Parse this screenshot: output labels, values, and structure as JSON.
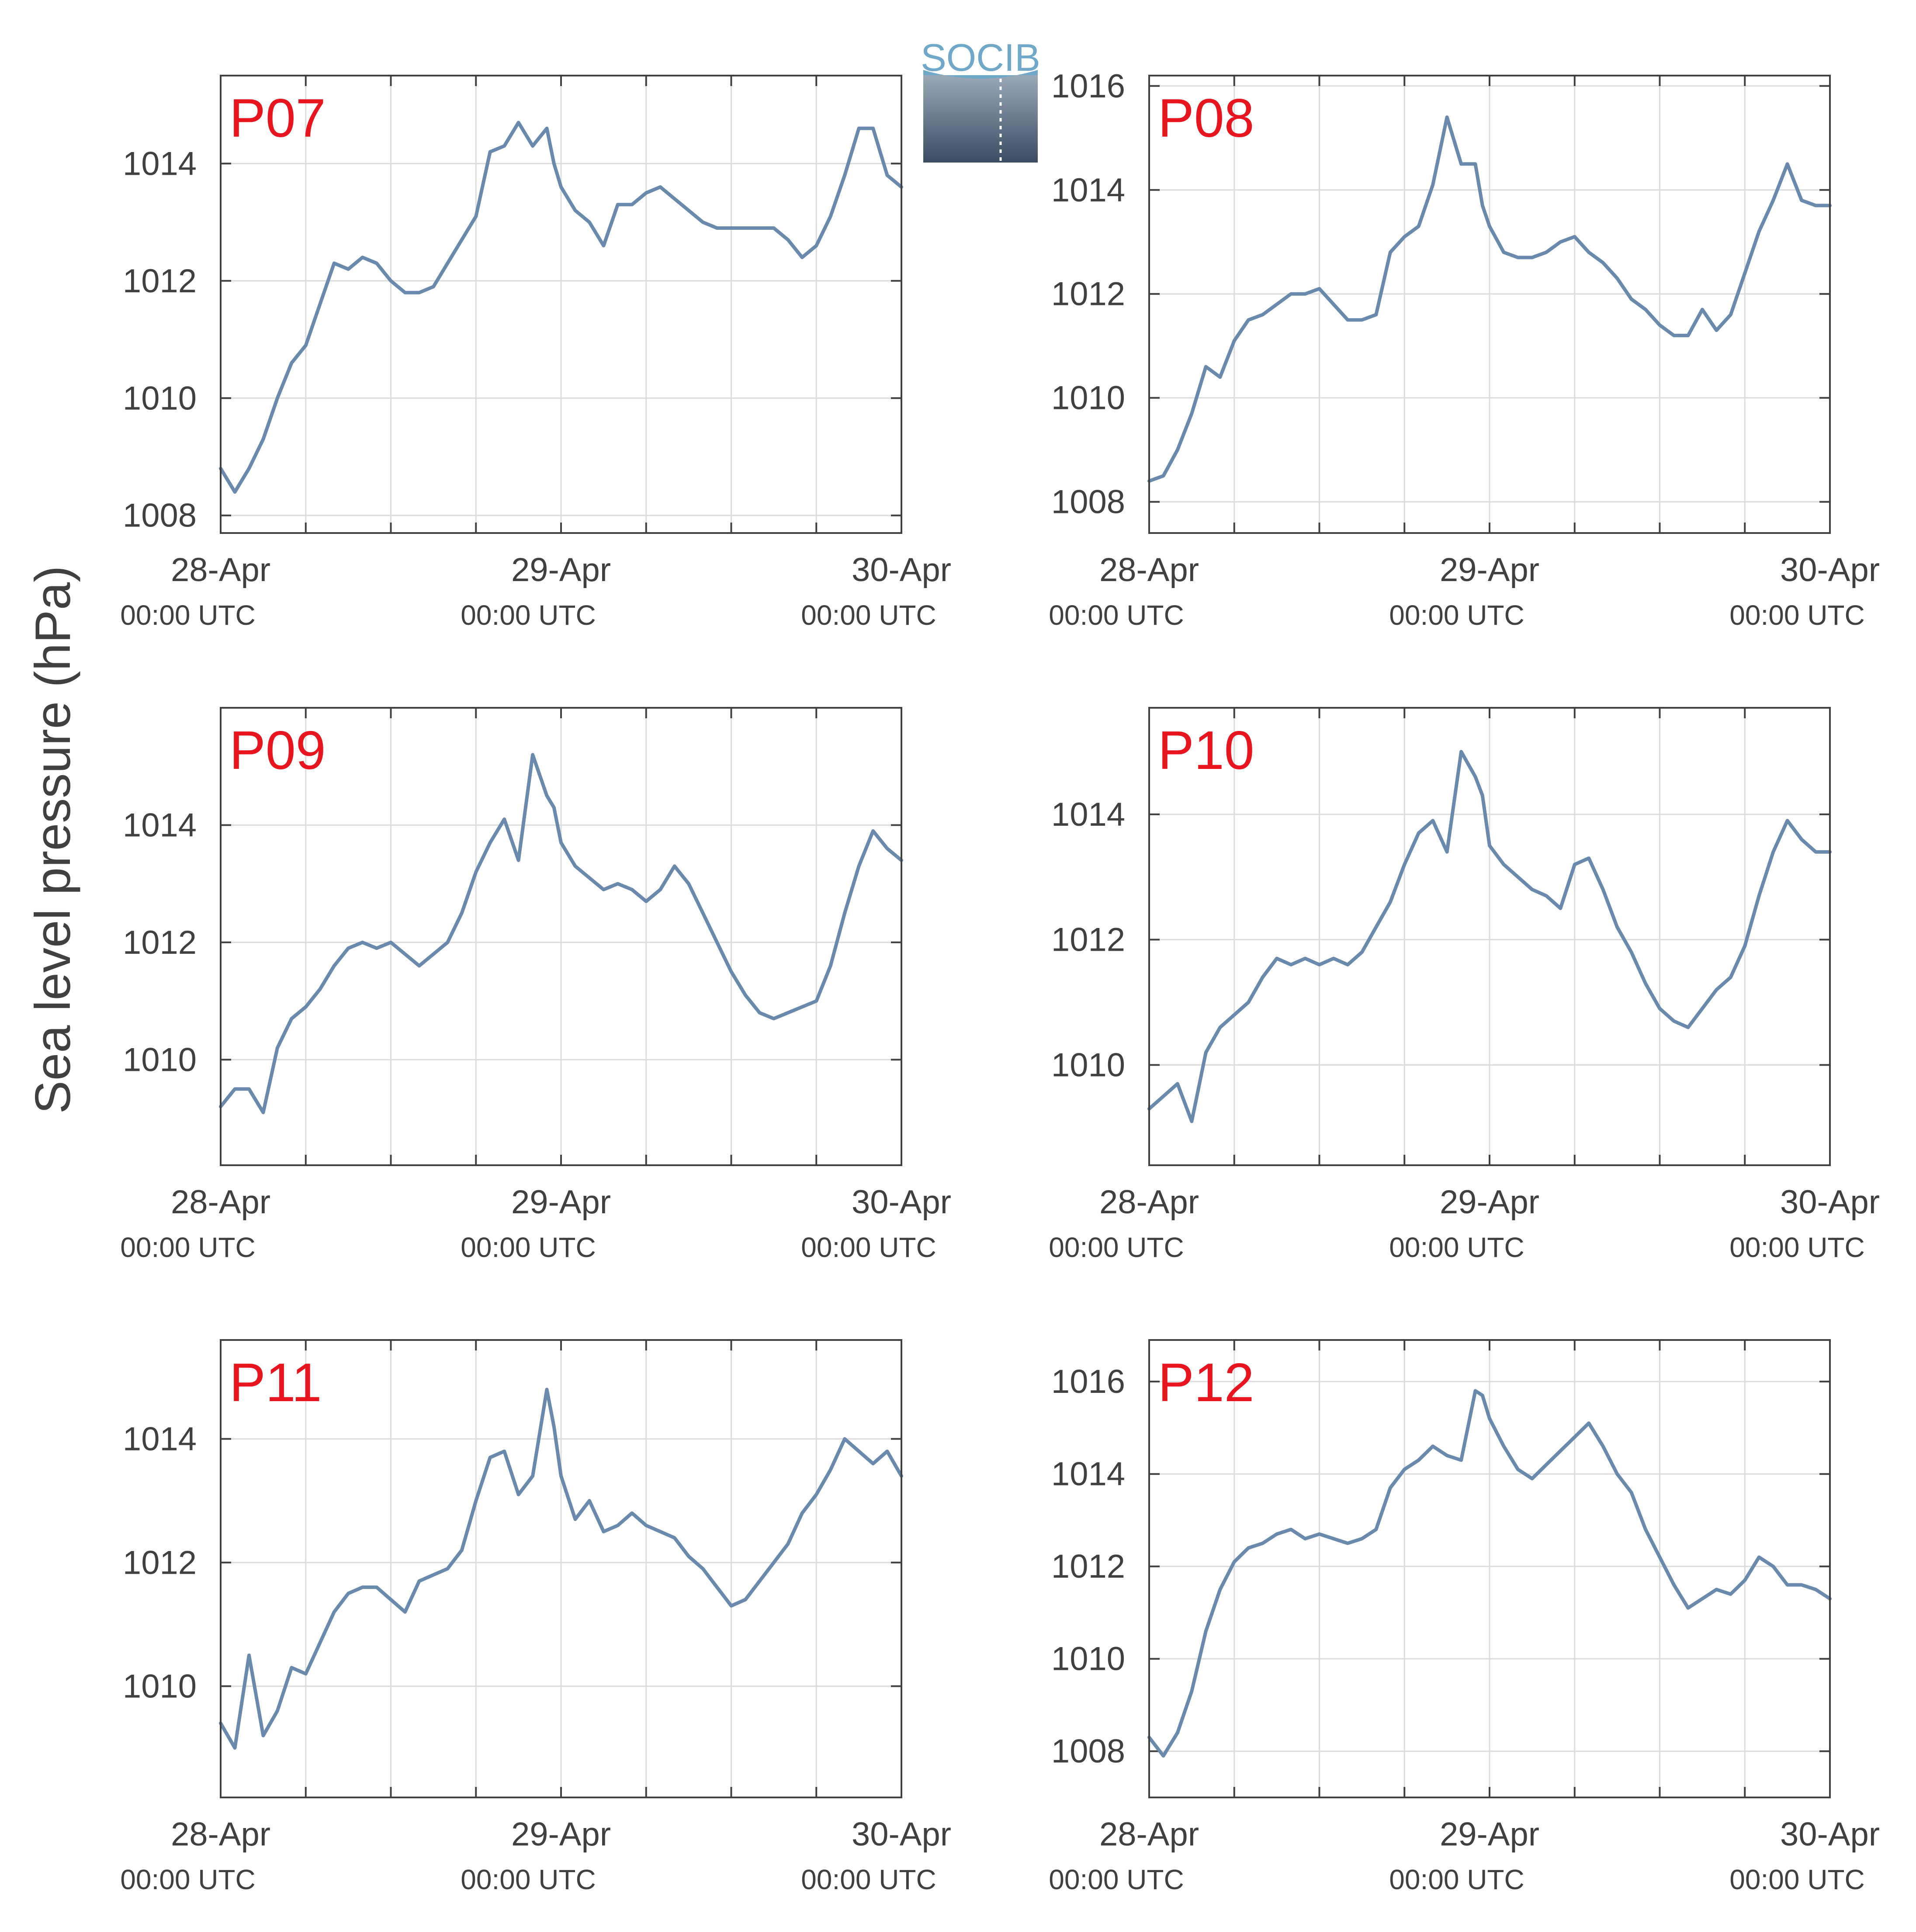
{
  "figure": {
    "ylabel": "Sea level pressure (hPa)",
    "logo": {
      "text": "SOCIB"
    },
    "colors": {
      "line": "#6a8aad",
      "label": "#e8151e",
      "axis": "#404040",
      "grid": "#dcdcdc",
      "background": "#ffffff"
    }
  },
  "chart_data": [
    {
      "type": "line",
      "title": "P07",
      "xlabel": "",
      "ylabel": "",
      "x_ticks": [
        {
          "label": "28-Apr",
          "sublabel": "00:00 UTC"
        },
        {
          "label": "29-Apr",
          "sublabel": "00:00 UTC"
        },
        {
          "label": "30-Apr",
          "sublabel": "00:00 UTC"
        }
      ],
      "x_range_hours": [
        0,
        48
      ],
      "y_ticks": [
        1008,
        1010,
        1012,
        1014
      ],
      "ylim": [
        1007.7,
        1015.5
      ],
      "grid": true,
      "series": [
        {
          "x_hours": [
            0,
            1,
            2,
            3,
            4,
            5,
            6,
            7,
            8,
            9,
            10,
            11,
            12,
            13,
            14,
            15,
            16,
            17,
            18,
            19,
            20,
            21,
            22,
            23,
            23.5,
            24,
            25,
            26,
            27,
            28,
            29,
            30,
            31,
            32,
            33,
            34,
            35,
            36,
            37,
            38,
            39,
            40,
            41,
            42,
            43,
            44,
            45,
            46,
            47,
            48
          ],
          "y": [
            1008.8,
            1008.4,
            1008.8,
            1009.3,
            1010,
            1010.6,
            1010.9,
            1011.6,
            1012.3,
            1012.2,
            1012.4,
            1012.3,
            1012,
            1011.8,
            1011.8,
            1011.9,
            1012.3,
            1012.7,
            1013.1,
            1014.2,
            1014.3,
            1014.7,
            1014.3,
            1014.6,
            1014.0,
            1013.6,
            1013.2,
            1013.0,
            1012.6,
            1013.3,
            1013.3,
            1013.5,
            1013.6,
            1013.4,
            1013.2,
            1013.0,
            1012.9,
            1012.9,
            1012.9,
            1012.9,
            1012.9,
            1012.7,
            1012.4,
            1012.6,
            1013.1,
            1013.8,
            1014.6,
            1014.6,
            1013.8,
            1013.6
          ]
        }
      ]
    },
    {
      "type": "line",
      "title": "P08",
      "xlabel": "",
      "ylabel": "",
      "x_ticks": [
        {
          "label": "28-Apr",
          "sublabel": "00:00 UTC"
        },
        {
          "label": "29-Apr",
          "sublabel": "00:00 UTC"
        },
        {
          "label": "30-Apr",
          "sublabel": "00:00 UTC"
        }
      ],
      "x_range_hours": [
        0,
        48
      ],
      "y_ticks": [
        1008,
        1010,
        1012,
        1014,
        1016
      ],
      "ylim": [
        1007.4,
        1016.2
      ],
      "grid": true,
      "series": [
        {
          "x_hours": [
            0,
            1,
            2,
            3,
            4,
            5,
            6,
            7,
            8,
            9,
            10,
            11,
            12,
            13,
            14,
            15,
            16,
            17,
            18,
            19,
            20,
            21,
            22,
            23,
            23.5,
            24,
            25,
            26,
            27,
            28,
            29,
            30,
            31,
            32,
            33,
            34,
            35,
            36,
            37,
            38,
            39,
            40,
            41,
            42,
            43,
            44,
            45,
            46,
            47,
            48
          ],
          "y": [
            1008.4,
            1008.5,
            1009,
            1009.7,
            1010.6,
            1010.4,
            1011.1,
            1011.5,
            1011.6,
            1011.8,
            1012,
            1012,
            1012.1,
            1011.8,
            1011.5,
            1011.5,
            1011.6,
            1012.8,
            1013.1,
            1013.3,
            1014.1,
            1015.4,
            1014.5,
            1014.5,
            1013.7,
            1013.3,
            1012.8,
            1012.7,
            1012.7,
            1012.8,
            1013.0,
            1013.1,
            1012.8,
            1012.6,
            1012.3,
            1011.9,
            1011.7,
            1011.4,
            1011.2,
            1011.2,
            1011.7,
            1011.3,
            1011.6,
            1012.4,
            1013.2,
            1013.8,
            1014.5,
            1013.8,
            1013.7,
            1013.7
          ]
        }
      ]
    },
    {
      "type": "line",
      "title": "P09",
      "xlabel": "",
      "ylabel": "",
      "x_ticks": [
        {
          "label": "28-Apr",
          "sublabel": "00:00 UTC"
        },
        {
          "label": "29-Apr",
          "sublabel": "00:00 UTC"
        },
        {
          "label": "30-Apr",
          "sublabel": "00:00 UTC"
        }
      ],
      "x_range_hours": [
        0,
        48
      ],
      "y_ticks": [
        1010,
        1012,
        1014
      ],
      "ylim": [
        1008.2,
        1016
      ],
      "grid": true,
      "series": [
        {
          "x_hours": [
            0,
            1,
            2,
            3,
            4,
            5,
            6,
            7,
            8,
            9,
            10,
            11,
            12,
            13,
            14,
            15,
            16,
            17,
            18,
            19,
            20,
            21,
            22,
            23,
            23.5,
            24,
            25,
            26,
            27,
            28,
            29,
            30,
            31,
            32,
            33,
            34,
            35,
            36,
            37,
            38,
            39,
            40,
            41,
            42,
            43,
            44,
            45,
            46,
            47,
            48
          ],
          "y": [
            1009.2,
            1009.5,
            1009.5,
            1009.1,
            1010.2,
            1010.7,
            1010.9,
            1011.2,
            1011.6,
            1011.9,
            1012,
            1011.9,
            1012,
            1011.8,
            1011.6,
            1011.8,
            1012,
            1012.5,
            1013.2,
            1013.7,
            1014.1,
            1013.4,
            1015.2,
            1014.5,
            1014.3,
            1013.7,
            1013.3,
            1013.1,
            1012.9,
            1013.0,
            1012.9,
            1012.7,
            1012.9,
            1013.3,
            1013.0,
            1012.5,
            1012.0,
            1011.5,
            1011.1,
            1010.8,
            1010.7,
            1010.8,
            1010.9,
            1011.0,
            1011.6,
            1012.5,
            1013.3,
            1013.9,
            1013.6,
            1013.4
          ]
        }
      ]
    },
    {
      "type": "line",
      "title": "P10",
      "xlabel": "",
      "ylabel": "",
      "x_ticks": [
        {
          "label": "28-Apr",
          "sublabel": "00:00 UTC"
        },
        {
          "label": "29-Apr",
          "sublabel": "00:00 UTC"
        },
        {
          "label": "30-Apr",
          "sublabel": "00:00 UTC"
        }
      ],
      "x_range_hours": [
        0,
        48
      ],
      "y_ticks": [
        1010,
        1012,
        1014
      ],
      "ylim": [
        1008.4,
        1015.7
      ],
      "grid": true,
      "series": [
        {
          "x_hours": [
            0,
            1,
            2,
            3,
            4,
            5,
            6,
            7,
            8,
            9,
            10,
            11,
            12,
            13,
            14,
            15,
            16,
            17,
            18,
            19,
            20,
            21,
            22,
            23,
            23.5,
            24,
            25,
            26,
            27,
            28,
            29,
            30,
            31,
            32,
            33,
            34,
            35,
            36,
            37,
            38,
            39,
            40,
            41,
            42,
            43,
            44,
            45,
            46,
            47,
            48
          ],
          "y": [
            1009.3,
            1009.5,
            1009.7,
            1009.1,
            1010.2,
            1010.6,
            1010.8,
            1011.0,
            1011.4,
            1011.7,
            1011.6,
            1011.7,
            1011.6,
            1011.7,
            1011.6,
            1011.8,
            1012.2,
            1012.6,
            1013.2,
            1013.7,
            1013.9,
            1013.4,
            1015.0,
            1014.6,
            1014.3,
            1013.5,
            1013.2,
            1013.0,
            1012.8,
            1012.7,
            1012.5,
            1013.2,
            1013.3,
            1012.8,
            1012.2,
            1011.8,
            1011.3,
            1010.9,
            1010.7,
            1010.6,
            1010.9,
            1011.2,
            1011.4,
            1011.9,
            1012.7,
            1013.4,
            1013.9,
            1013.6,
            1013.4,
            1013.4
          ]
        }
      ]
    },
    {
      "type": "line",
      "title": "P11",
      "xlabel": "",
      "ylabel": "",
      "x_ticks": [
        {
          "label": "28-Apr",
          "sublabel": "00:00 UTC"
        },
        {
          "label": "29-Apr",
          "sublabel": "00:00 UTC"
        },
        {
          "label": "30-Apr",
          "sublabel": "00:00 UTC"
        }
      ],
      "x_range_hours": [
        0,
        48
      ],
      "y_ticks": [
        1010,
        1012,
        1014
      ],
      "ylim": [
        1008.2,
        1015.6
      ],
      "grid": true,
      "series": [
        {
          "x_hours": [
            0,
            1,
            2,
            3,
            4,
            5,
            6,
            7,
            8,
            9,
            10,
            11,
            12,
            13,
            14,
            15,
            16,
            17,
            18,
            19,
            20,
            21,
            22,
            23,
            23.5,
            24,
            25,
            26,
            27,
            28,
            29,
            30,
            31,
            32,
            33,
            34,
            35,
            36,
            37,
            38,
            39,
            40,
            41,
            42,
            43,
            44,
            45,
            46,
            47,
            48
          ],
          "y": [
            1009.4,
            1009.0,
            1010.5,
            1009.2,
            1009.6,
            1010.3,
            1010.2,
            1010.7,
            1011.2,
            1011.5,
            1011.6,
            1011.6,
            1011.4,
            1011.2,
            1011.7,
            1011.8,
            1011.9,
            1012.2,
            1013.0,
            1013.7,
            1013.8,
            1013.1,
            1013.4,
            1014.8,
            1014.2,
            1013.4,
            1012.7,
            1013.0,
            1012.5,
            1012.6,
            1012.8,
            1012.6,
            1012.5,
            1012.4,
            1012.1,
            1011.9,
            1011.6,
            1011.3,
            1011.4,
            1011.7,
            1012.0,
            1012.3,
            1012.8,
            1013.1,
            1013.5,
            1014.0,
            1013.8,
            1013.6,
            1013.8,
            1013.4
          ]
        }
      ]
    },
    {
      "type": "line",
      "title": "P12",
      "xlabel": "",
      "ylabel": "",
      "x_ticks": [
        {
          "label": "28-Apr",
          "sublabel": "00:00 UTC"
        },
        {
          "label": "29-Apr",
          "sublabel": "00:00 UTC"
        },
        {
          "label": "30-Apr",
          "sublabel": "00:00 UTC"
        }
      ],
      "x_range_hours": [
        0,
        48
      ],
      "y_ticks": [
        1008,
        1010,
        1012,
        1014,
        1016
      ],
      "ylim": [
        1007.0,
        1016.9
      ],
      "grid": true,
      "series": [
        {
          "x_hours": [
            0,
            1,
            2,
            3,
            4,
            5,
            6,
            7,
            8,
            9,
            10,
            11,
            12,
            13,
            14,
            15,
            16,
            17,
            18,
            19,
            20,
            21,
            22,
            23,
            23.5,
            24,
            25,
            26,
            27,
            28,
            29,
            30,
            31,
            32,
            33,
            34,
            35,
            36,
            37,
            38,
            39,
            40,
            41,
            42,
            43,
            44,
            45,
            46,
            47,
            48
          ],
          "y": [
            1008.3,
            1007.9,
            1008.4,
            1009.3,
            1010.6,
            1011.5,
            1012.1,
            1012.4,
            1012.5,
            1012.7,
            1012.8,
            1012.6,
            1012.7,
            1012.6,
            1012.5,
            1012.6,
            1012.8,
            1013.7,
            1014.1,
            1014.3,
            1014.6,
            1014.4,
            1014.3,
            1015.8,
            1015.7,
            1015.2,
            1014.6,
            1014.1,
            1013.9,
            1014.2,
            1014.5,
            1014.8,
            1015.1,
            1014.6,
            1014.0,
            1013.6,
            1012.8,
            1012.2,
            1011.6,
            1011.1,
            1011.3,
            1011.5,
            1011.4,
            1011.7,
            1012.2,
            1012.0,
            1011.6,
            1011.6,
            1011.5,
            1011.3
          ]
        }
      ]
    }
  ]
}
